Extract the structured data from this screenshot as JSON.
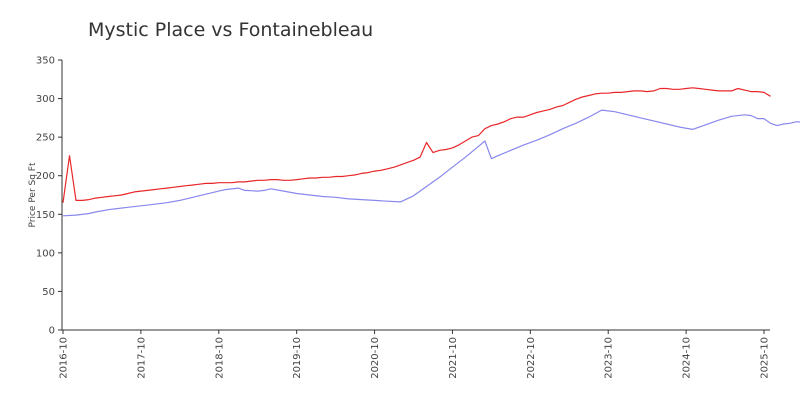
{
  "chart_data": {
    "type": "line",
    "title": "Mystic Place vs Fontainebleau",
    "xlabel": "",
    "ylabel": "Price Per Sq Ft",
    "ylim": [
      0,
      350
    ],
    "yticks": [
      "0",
      "50",
      "100",
      "150",
      "200",
      "250",
      "300",
      "350"
    ],
    "xticks": [
      "2016-10",
      "2017-10",
      "2018-10",
      "2019-10",
      "2020-10",
      "2021-10",
      "2022-10",
      "2023-10",
      "2024-10",
      "2025-10"
    ],
    "grid": false,
    "legend": "none",
    "series": [
      {
        "color": "#e8272a",
        "points": [
          [
            "2016-10",
            165
          ],
          [
            "2016-11",
            226
          ],
          [
            "2016-12",
            168
          ],
          [
            "2017-01",
            168
          ],
          [
            "2017-02",
            169
          ],
          [
            "2017-03",
            171
          ],
          [
            "2017-04",
            172
          ],
          [
            "2017-05",
            173
          ],
          [
            "2017-06",
            174
          ],
          [
            "2017-07",
            175
          ],
          [
            "2017-08",
            177
          ],
          [
            "2017-09",
            179
          ],
          [
            "2017-10",
            180
          ],
          [
            "2017-11",
            181
          ],
          [
            "2017-12",
            182
          ],
          [
            "2018-01",
            183
          ],
          [
            "2018-02",
            184
          ],
          [
            "2018-03",
            185
          ],
          [
            "2018-04",
            186
          ],
          [
            "2018-05",
            187
          ],
          [
            "2018-06",
            188
          ],
          [
            "2018-07",
            189
          ],
          [
            "2018-08",
            190
          ],
          [
            "2018-09",
            190
          ],
          [
            "2018-10",
            191
          ],
          [
            "2018-11",
            191
          ],
          [
            "2018-12",
            191
          ],
          [
            "2019-01",
            192
          ],
          [
            "2019-02",
            192
          ],
          [
            "2019-03",
            193
          ],
          [
            "2019-04",
            194
          ],
          [
            "2019-05",
            194
          ],
          [
            "2019-06",
            195
          ],
          [
            "2019-07",
            195
          ],
          [
            "2019-08",
            194
          ],
          [
            "2019-09",
            194
          ],
          [
            "2019-10",
            195
          ],
          [
            "2019-11",
            196
          ],
          [
            "2019-12",
            197
          ],
          [
            "2020-01",
            197
          ],
          [
            "2020-02",
            198
          ],
          [
            "2020-03",
            198
          ],
          [
            "2020-04",
            199
          ],
          [
            "2020-05",
            199
          ],
          [
            "2020-06",
            200
          ],
          [
            "2020-07",
            201
          ],
          [
            "2020-08",
            203
          ],
          [
            "2020-09",
            204
          ],
          [
            "2020-10",
            206
          ],
          [
            "2020-11",
            207
          ],
          [
            "2020-12",
            209
          ],
          [
            "2021-01",
            211
          ],
          [
            "2021-02",
            214
          ],
          [
            "2021-03",
            217
          ],
          [
            "2021-04",
            220
          ],
          [
            "2021-05",
            224
          ],
          [
            "2021-06",
            243
          ],
          [
            "2021-07",
            230
          ],
          [
            "2021-08",
            233
          ],
          [
            "2021-09",
            234
          ],
          [
            "2021-10",
            236
          ],
          [
            "2021-11",
            240
          ],
          [
            "2021-12",
            245
          ],
          [
            "2022-01",
            250
          ],
          [
            "2022-02",
            252
          ],
          [
            "2022-03",
            261
          ],
          [
            "2022-04",
            265
          ],
          [
            "2022-05",
            267
          ],
          [
            "2022-06",
            270
          ],
          [
            "2022-07",
            274
          ],
          [
            "2022-08",
            276
          ],
          [
            "2022-09",
            276
          ],
          [
            "2022-10",
            279
          ],
          [
            "2022-11",
            282
          ],
          [
            "2022-12",
            284
          ],
          [
            "2023-01",
            286
          ],
          [
            "2023-02",
            289
          ],
          [
            "2023-03",
            291
          ],
          [
            "2023-04",
            295
          ],
          [
            "2023-05",
            299
          ],
          [
            "2023-06",
            302
          ],
          [
            "2023-07",
            304
          ],
          [
            "2023-08",
            306
          ],
          [
            "2023-09",
            307
          ],
          [
            "2023-10",
            307
          ],
          [
            "2023-11",
            308
          ],
          [
            "2023-12",
            308
          ],
          [
            "2024-01",
            309
          ],
          [
            "2024-02",
            310
          ],
          [
            "2024-03",
            310
          ],
          [
            "2024-04",
            309
          ],
          [
            "2024-05",
            310
          ],
          [
            "2024-06",
            313
          ],
          [
            "2024-07",
            313
          ],
          [
            "2024-08",
            312
          ],
          [
            "2024-09",
            312
          ],
          [
            "2024-10",
            313
          ],
          [
            "2024-11",
            314
          ],
          [
            "2024-12",
            313
          ],
          [
            "2025-01",
            312
          ],
          [
            "2025-02",
            311
          ],
          [
            "2025-03",
            310
          ],
          [
            "2025-04",
            310
          ],
          [
            "2025-05",
            310
          ],
          [
            "2025-06",
            313
          ],
          [
            "2025-07",
            311
          ],
          [
            "2025-08",
            309
          ],
          [
            "2025-09",
            309
          ],
          [
            "2025-10",
            308
          ],
          [
            "2025-11",
            303
          ]
        ]
      },
      {
        "color": "#8888ee",
        "points": [
          [
            "2016-10",
            148
          ],
          [
            "2016-12",
            149
          ],
          [
            "2017-02",
            151
          ],
          [
            "2017-03",
            153
          ],
          [
            "2017-05",
            156
          ],
          [
            "2017-06",
            157
          ],
          [
            "2017-08",
            159
          ],
          [
            "2017-10",
            161
          ],
          [
            "2017-12",
            163
          ],
          [
            "2018-02",
            165
          ],
          [
            "2018-04",
            168
          ],
          [
            "2018-06",
            172
          ],
          [
            "2018-08",
            176
          ],
          [
            "2018-10",
            180
          ],
          [
            "2018-11",
            182
          ],
          [
            "2019-01",
            184
          ],
          [
            "2019-02",
            181
          ],
          [
            "2019-04",
            180
          ],
          [
            "2019-05",
            181
          ],
          [
            "2019-06",
            183
          ],
          [
            "2019-08",
            180
          ],
          [
            "2019-10",
            177
          ],
          [
            "2019-12",
            175
          ],
          [
            "2020-02",
            173
          ],
          [
            "2020-04",
            172
          ],
          [
            "2020-06",
            170
          ],
          [
            "2020-08",
            169
          ],
          [
            "2020-10",
            168
          ],
          [
            "2020-12",
            167
          ],
          [
            "2021-02",
            166
          ],
          [
            "2021-04",
            174
          ],
          [
            "2021-06",
            186
          ],
          [
            "2021-08",
            198
          ],
          [
            "2021-10",
            211
          ],
          [
            "2021-12",
            224
          ],
          [
            "2022-02",
            238
          ],
          [
            "2022-03",
            245
          ],
          [
            "2022-04",
            222
          ],
          [
            "2022-05",
            226
          ],
          [
            "2022-07",
            233
          ],
          [
            "2022-09",
            240
          ],
          [
            "2022-11",
            246
          ],
          [
            "2023-01",
            253
          ],
          [
            "2023-03",
            261
          ],
          [
            "2023-05",
            268
          ],
          [
            "2023-07",
            276
          ],
          [
            "2023-09",
            285
          ],
          [
            "2023-11",
            283
          ],
          [
            "2024-01",
            279
          ],
          [
            "2024-03",
            275
          ],
          [
            "2024-05",
            271
          ],
          [
            "2024-07",
            267
          ],
          [
            "2024-09",
            263
          ],
          [
            "2024-11",
            260
          ],
          [
            "2025-01",
            266
          ],
          [
            "2025-03",
            272
          ],
          [
            "2025-05",
            277
          ],
          [
            "2025-07",
            279
          ],
          [
            "2025-08",
            278
          ],
          [
            "2025-09",
            274
          ],
          [
            "2025-10",
            274
          ],
          [
            "2025-11",
            268
          ],
          [
            "2025-12",
            265
          ],
          [
            "2026-01",
            267
          ],
          [
            "2026-02",
            268
          ],
          [
            "2026-03",
            270
          ],
          [
            "2026-04",
            269
          ],
          [
            "2026-05",
            267
          ]
        ]
      }
    ]
  }
}
